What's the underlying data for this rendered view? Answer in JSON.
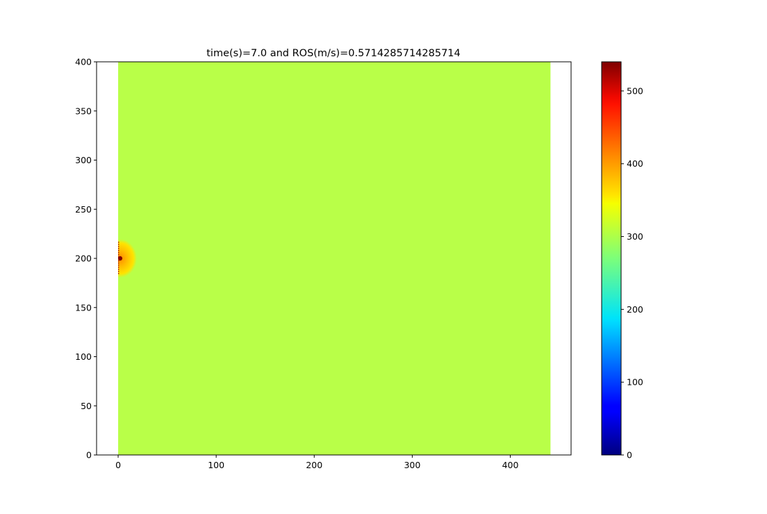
{
  "chart_data": {
    "type": "heatmap",
    "title": "time(s)=7.0  and ROS(m/s)=0.5714285714285714",
    "xlabel": "",
    "ylabel": "",
    "xlim": [
      -22,
      462
    ],
    "ylim": [
      0,
      400
    ],
    "x_ticks": [
      0,
      100,
      200,
      300,
      400
    ],
    "y_ticks": [
      0,
      50,
      100,
      150,
      200,
      250,
      300,
      350,
      400
    ],
    "field": {
      "x_extent": [
        0,
        441
      ],
      "y_extent": [
        0,
        400
      ],
      "background_value": 320,
      "hotspot": {
        "center": [
          2,
          200
        ],
        "core_value": 540,
        "halo_value": 370,
        "front_x": 0,
        "front_y_range": [
          183,
          217
        ]
      }
    },
    "colorbar": {
      "colormap": "jet",
      "range": [
        0,
        540
      ],
      "ticks": [
        0,
        100,
        200,
        300,
        400,
        500
      ]
    },
    "grid": false
  }
}
